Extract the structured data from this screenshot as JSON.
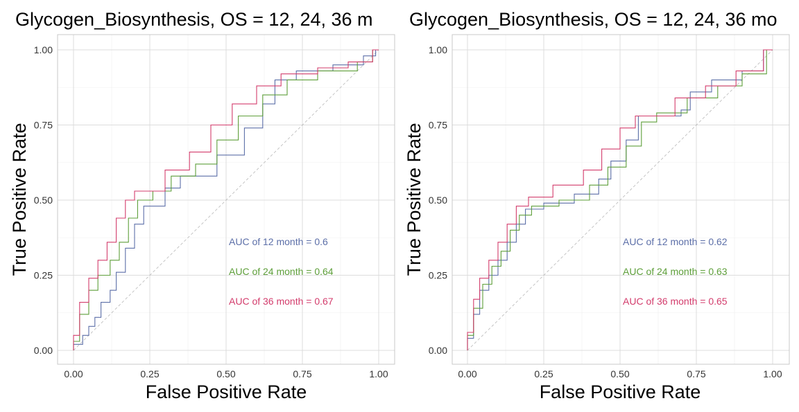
{
  "colors": {
    "12": "#5c6fa8",
    "24": "#5e9f3a",
    "36": "#d33c6c"
  },
  "chart_data": [
    {
      "type": "line",
      "title": "Glycogen_Biosynthesis, OS = 12, 24, 36 m",
      "xlabel": "False Positive Rate",
      "ylabel": "True Positive Rate",
      "xlim": [
        0,
        1
      ],
      "ylim": [
        0,
        1
      ],
      "xticks": [
        "0.00",
        "0.25",
        "0.50",
        "0.75",
        "1.00"
      ],
      "yticks": [
        "0.00",
        "0.25",
        "0.50",
        "0.75",
        "1.00"
      ],
      "grid": true,
      "reference_line": "diagonal",
      "series": [
        {
          "key": "12",
          "label": "AUC of  12  month =  0.6",
          "points": [
            [
              0,
              0
            ],
            [
              0,
              0.02
            ],
            [
              0.03,
              0.02
            ],
            [
              0.03,
              0.05
            ],
            [
              0.05,
              0.05
            ],
            [
              0.05,
              0.08
            ],
            [
              0.07,
              0.08
            ],
            [
              0.07,
              0.11
            ],
            [
              0.09,
              0.11
            ],
            [
              0.09,
              0.16
            ],
            [
              0.12,
              0.16
            ],
            [
              0.12,
              0.2
            ],
            [
              0.14,
              0.2
            ],
            [
              0.14,
              0.26
            ],
            [
              0.17,
              0.26
            ],
            [
              0.17,
              0.34
            ],
            [
              0.2,
              0.34
            ],
            [
              0.2,
              0.42
            ],
            [
              0.23,
              0.42
            ],
            [
              0.23,
              0.48
            ],
            [
              0.3,
              0.48
            ],
            [
              0.3,
              0.54
            ],
            [
              0.35,
              0.54
            ],
            [
              0.35,
              0.58
            ],
            [
              0.47,
              0.58
            ],
            [
              0.47,
              0.65
            ],
            [
              0.56,
              0.65
            ],
            [
              0.56,
              0.74
            ],
            [
              0.62,
              0.74
            ],
            [
              0.62,
              0.82
            ],
            [
              0.66,
              0.82
            ],
            [
              0.66,
              0.9
            ],
            [
              0.73,
              0.9
            ],
            [
              0.73,
              0.93
            ],
            [
              0.85,
              0.93
            ],
            [
              0.85,
              0.95
            ],
            [
              0.95,
              0.95
            ],
            [
              0.95,
              0.98
            ],
            [
              0.99,
              0.98
            ],
            [
              0.99,
              1
            ],
            [
              1,
              1
            ]
          ]
        },
        {
          "key": "24",
          "label": "AUC of  24  month =  0.64",
          "points": [
            [
              0,
              0
            ],
            [
              0,
              0.03
            ],
            [
              0.02,
              0.03
            ],
            [
              0.02,
              0.12
            ],
            [
              0.05,
              0.12
            ],
            [
              0.05,
              0.2
            ],
            [
              0.08,
              0.2
            ],
            [
              0.08,
              0.25
            ],
            [
              0.12,
              0.25
            ],
            [
              0.12,
              0.3
            ],
            [
              0.15,
              0.3
            ],
            [
              0.15,
              0.36
            ],
            [
              0.18,
              0.36
            ],
            [
              0.18,
              0.44
            ],
            [
              0.21,
              0.44
            ],
            [
              0.21,
              0.5
            ],
            [
              0.26,
              0.5
            ],
            [
              0.26,
              0.53
            ],
            [
              0.32,
              0.53
            ],
            [
              0.32,
              0.58
            ],
            [
              0.4,
              0.58
            ],
            [
              0.4,
              0.62
            ],
            [
              0.47,
              0.62
            ],
            [
              0.47,
              0.7
            ],
            [
              0.54,
              0.7
            ],
            [
              0.54,
              0.78
            ],
            [
              0.62,
              0.78
            ],
            [
              0.62,
              0.85
            ],
            [
              0.7,
              0.85
            ],
            [
              0.7,
              0.9
            ],
            [
              0.8,
              0.9
            ],
            [
              0.8,
              0.93
            ],
            [
              0.93,
              0.93
            ],
            [
              0.93,
              0.96
            ],
            [
              0.98,
              0.96
            ],
            [
              0.98,
              1
            ],
            [
              1,
              1
            ]
          ]
        },
        {
          "key": "36",
          "label": "AUC of  36  month =  0.67",
          "points": [
            [
              0,
              0
            ],
            [
              0,
              0.05
            ],
            [
              0.02,
              0.05
            ],
            [
              0.02,
              0.16
            ],
            [
              0.05,
              0.16
            ],
            [
              0.05,
              0.24
            ],
            [
              0.08,
              0.24
            ],
            [
              0.08,
              0.3
            ],
            [
              0.11,
              0.3
            ],
            [
              0.11,
              0.36
            ],
            [
              0.14,
              0.36
            ],
            [
              0.14,
              0.44
            ],
            [
              0.17,
              0.44
            ],
            [
              0.17,
              0.5
            ],
            [
              0.2,
              0.5
            ],
            [
              0.2,
              0.53
            ],
            [
              0.3,
              0.53
            ],
            [
              0.3,
              0.6
            ],
            [
              0.38,
              0.6
            ],
            [
              0.38,
              0.66
            ],
            [
              0.45,
              0.66
            ],
            [
              0.45,
              0.75
            ],
            [
              0.52,
              0.75
            ],
            [
              0.52,
              0.82
            ],
            [
              0.6,
              0.82
            ],
            [
              0.6,
              0.88
            ],
            [
              0.68,
              0.88
            ],
            [
              0.68,
              0.92
            ],
            [
              0.8,
              0.92
            ],
            [
              0.8,
              0.94
            ],
            [
              0.9,
              0.94
            ],
            [
              0.9,
              0.96
            ],
            [
              0.98,
              0.96
            ],
            [
              0.98,
              1
            ],
            [
              1,
              1
            ]
          ]
        }
      ]
    },
    {
      "type": "line",
      "title": "Glycogen_Biosynthesis, OS = 12, 24, 36 mo",
      "xlabel": "False Positive Rate",
      "ylabel": "True Positive Rate",
      "xlim": [
        0,
        1
      ],
      "ylim": [
        0,
        1
      ],
      "xticks": [
        "0.00",
        "0.25",
        "0.50",
        "0.75",
        "1.00"
      ],
      "yticks": [
        "0.00",
        "0.25",
        "0.50",
        "0.75",
        "1.00"
      ],
      "grid": true,
      "reference_line": "diagonal",
      "series": [
        {
          "key": "12",
          "label": "AUC of  12  month =  0.62",
          "points": [
            [
              0,
              0
            ],
            [
              0,
              0.04
            ],
            [
              0.02,
              0.04
            ],
            [
              0.02,
              0.12
            ],
            [
              0.04,
              0.12
            ],
            [
              0.04,
              0.2
            ],
            [
              0.07,
              0.2
            ],
            [
              0.07,
              0.25
            ],
            [
              0.1,
              0.25
            ],
            [
              0.1,
              0.3
            ],
            [
              0.13,
              0.3
            ],
            [
              0.13,
              0.36
            ],
            [
              0.16,
              0.36
            ],
            [
              0.16,
              0.42
            ],
            [
              0.19,
              0.42
            ],
            [
              0.19,
              0.47
            ],
            [
              0.25,
              0.47
            ],
            [
              0.25,
              0.49
            ],
            [
              0.35,
              0.49
            ],
            [
              0.35,
              0.52
            ],
            [
              0.43,
              0.52
            ],
            [
              0.43,
              0.57
            ],
            [
              0.47,
              0.57
            ],
            [
              0.47,
              0.63
            ],
            [
              0.52,
              0.63
            ],
            [
              0.52,
              0.7
            ],
            [
              0.56,
              0.7
            ],
            [
              0.56,
              0.78
            ],
            [
              0.7,
              0.78
            ],
            [
              0.7,
              0.8
            ],
            [
              0.73,
              0.8
            ],
            [
              0.73,
              0.86
            ],
            [
              0.8,
              0.86
            ],
            [
              0.8,
              0.9
            ],
            [
              0.9,
              0.9
            ],
            [
              0.9,
              0.93
            ],
            [
              0.97,
              0.93
            ],
            [
              0.97,
              1
            ],
            [
              1,
              1
            ]
          ]
        },
        {
          "key": "24",
          "label": "AUC of  24  month =  0.63",
          "points": [
            [
              0,
              0
            ],
            [
              0,
              0.05
            ],
            [
              0.02,
              0.05
            ],
            [
              0.02,
              0.14
            ],
            [
              0.05,
              0.14
            ],
            [
              0.05,
              0.22
            ],
            [
              0.08,
              0.22
            ],
            [
              0.08,
              0.28
            ],
            [
              0.11,
              0.28
            ],
            [
              0.11,
              0.33
            ],
            [
              0.14,
              0.33
            ],
            [
              0.14,
              0.4
            ],
            [
              0.17,
              0.4
            ],
            [
              0.17,
              0.45
            ],
            [
              0.21,
              0.45
            ],
            [
              0.21,
              0.48
            ],
            [
              0.3,
              0.48
            ],
            [
              0.3,
              0.5
            ],
            [
              0.4,
              0.5
            ],
            [
              0.4,
              0.55
            ],
            [
              0.46,
              0.55
            ],
            [
              0.46,
              0.61
            ],
            [
              0.52,
              0.61
            ],
            [
              0.52,
              0.68
            ],
            [
              0.57,
              0.68
            ],
            [
              0.57,
              0.76
            ],
            [
              0.62,
              0.76
            ],
            [
              0.62,
              0.79
            ],
            [
              0.72,
              0.79
            ],
            [
              0.72,
              0.84
            ],
            [
              0.82,
              0.84
            ],
            [
              0.82,
              0.88
            ],
            [
              0.9,
              0.88
            ],
            [
              0.9,
              0.92
            ],
            [
              0.98,
              0.92
            ],
            [
              0.98,
              1
            ],
            [
              1,
              1
            ]
          ]
        },
        {
          "key": "36",
          "label": "AUC of  36  month =  0.65",
          "points": [
            [
              0,
              0
            ],
            [
              0,
              0.06
            ],
            [
              0.02,
              0.06
            ],
            [
              0.02,
              0.17
            ],
            [
              0.04,
              0.17
            ],
            [
              0.04,
              0.24
            ],
            [
              0.07,
              0.24
            ],
            [
              0.07,
              0.3
            ],
            [
              0.1,
              0.3
            ],
            [
              0.1,
              0.36
            ],
            [
              0.13,
              0.36
            ],
            [
              0.13,
              0.42
            ],
            [
              0.16,
              0.42
            ],
            [
              0.16,
              0.48
            ],
            [
              0.2,
              0.48
            ],
            [
              0.2,
              0.51
            ],
            [
              0.28,
              0.51
            ],
            [
              0.28,
              0.55
            ],
            [
              0.38,
              0.55
            ],
            [
              0.38,
              0.6
            ],
            [
              0.44,
              0.6
            ],
            [
              0.44,
              0.67
            ],
            [
              0.5,
              0.67
            ],
            [
              0.5,
              0.74
            ],
            [
              0.55,
              0.74
            ],
            [
              0.55,
              0.78
            ],
            [
              0.68,
              0.78
            ],
            [
              0.68,
              0.84
            ],
            [
              0.78,
              0.84
            ],
            [
              0.78,
              0.88
            ],
            [
              0.88,
              0.88
            ],
            [
              0.88,
              0.93
            ],
            [
              0.97,
              0.93
            ],
            [
              0.97,
              1
            ],
            [
              1,
              1
            ]
          ]
        }
      ]
    }
  ]
}
